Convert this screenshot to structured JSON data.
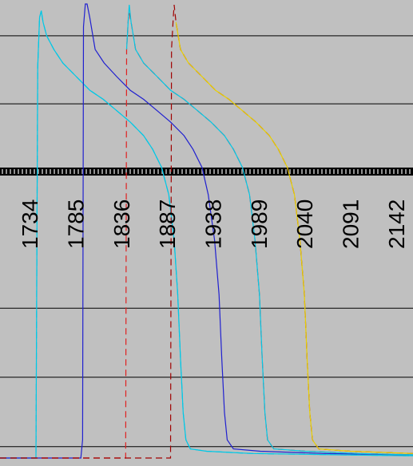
{
  "chart_data": {
    "type": "line",
    "title": "",
    "xlabel": "",
    "ylabel": "",
    "background": "#c0c0c0",
    "grid": true,
    "xlim": [
      1700,
      2160
    ],
    "ylim": [
      0,
      1
    ],
    "x_tick_labels": [
      "1734",
      "1785",
      "1836",
      "1887",
      "1938",
      "1989",
      "2040",
      "2091",
      "2142"
    ],
    "x_ticks": [
      1734,
      1785,
      1836,
      1887,
      1938,
      1989,
      2040,
      2091,
      2142
    ],
    "y_gridlines": [
      0.025,
      0.178,
      0.33,
      0.63,
      0.78,
      0.93
    ],
    "axis_band_color": "#000000",
    "series": [
      {
        "color": "#00c8e6",
        "dash": "8,5",
        "points": [
          [
            1700,
            0.0
          ],
          [
            1740,
            0.0
          ],
          [
            1742,
            0.86
          ],
          [
            1744,
            0.97
          ],
          [
            1746,
            0.985
          ],
          [
            1748,
            0.96
          ],
          [
            1752,
            0.93
          ],
          [
            1760,
            0.9
          ],
          [
            1770,
            0.87
          ],
          [
            1785,
            0.84
          ],
          [
            1800,
            0.81
          ],
          [
            1815,
            0.79
          ],
          [
            1830,
            0.765
          ],
          [
            1845,
            0.74
          ],
          [
            1860,
            0.71
          ],
          [
            1870,
            0.68
          ],
          [
            1880,
            0.64
          ],
          [
            1888,
            0.58
          ],
          [
            1894,
            0.48
          ],
          [
            1898,
            0.36
          ],
          [
            1901,
            0.22
          ],
          [
            1904,
            0.1
          ],
          [
            1907,
            0.04
          ],
          [
            1912,
            0.02
          ],
          [
            1930,
            0.015
          ],
          [
            1980,
            0.01
          ],
          [
            2080,
            0.007
          ],
          [
            2160,
            0.005
          ]
        ]
      },
      {
        "color": "#00c8e6",
        "dash": "",
        "points": [
          [
            1700,
            0.0
          ],
          [
            1740,
            0.0
          ],
          [
            1742,
            0.86
          ],
          [
            1744,
            0.97
          ],
          [
            1746,
            0.985
          ],
          [
            1748,
            0.96
          ],
          [
            1752,
            0.93
          ],
          [
            1760,
            0.9
          ],
          [
            1770,
            0.87
          ],
          [
            1785,
            0.84
          ],
          [
            1800,
            0.81
          ],
          [
            1815,
            0.79
          ],
          [
            1830,
            0.765
          ],
          [
            1845,
            0.74
          ],
          [
            1860,
            0.71
          ],
          [
            1870,
            0.68
          ],
          [
            1880,
            0.64
          ],
          [
            1888,
            0.58
          ],
          [
            1894,
            0.48
          ],
          [
            1898,
            0.36
          ],
          [
            1901,
            0.22
          ],
          [
            1904,
            0.1
          ],
          [
            1907,
            0.04
          ],
          [
            1912,
            0.02
          ],
          [
            1930,
            0.015
          ],
          [
            1980,
            0.01
          ],
          [
            2080,
            0.007
          ],
          [
            2160,
            0.005
          ]
        ]
      },
      {
        "color": "#2020d0",
        "dash": "",
        "points": [
          [
            1700,
            0.0
          ],
          [
            1790,
            0.0
          ],
          [
            1792,
            0.04
          ],
          [
            1793,
            0.95
          ],
          [
            1795,
            1.0
          ],
          [
            1797,
            1.0
          ],
          [
            1800,
            0.97
          ],
          [
            1806,
            0.9
          ],
          [
            1816,
            0.87
          ],
          [
            1830,
            0.84
          ],
          [
            1845,
            0.81
          ],
          [
            1860,
            0.79
          ],
          [
            1875,
            0.765
          ],
          [
            1890,
            0.74
          ],
          [
            1905,
            0.71
          ],
          [
            1915,
            0.68
          ],
          [
            1925,
            0.64
          ],
          [
            1932,
            0.58
          ],
          [
            1939,
            0.48
          ],
          [
            1944,
            0.36
          ],
          [
            1947,
            0.22
          ],
          [
            1950,
            0.1
          ],
          [
            1953,
            0.04
          ],
          [
            1960,
            0.02
          ],
          [
            1990,
            0.015
          ],
          [
            2060,
            0.01
          ],
          [
            2160,
            0.007
          ]
        ]
      },
      {
        "color": "#e02020",
        "dash": "8,5",
        "points": [
          [
            1700,
            0.0
          ],
          [
            1840,
            0.0
          ],
          [
            1841,
            0.9
          ],
          [
            1843,
            0.97
          ],
          [
            1844,
            0.98
          ],
          [
            1846,
            0.96
          ],
          [
            1851,
            0.9
          ],
          [
            1860,
            0.87
          ],
          [
            1875,
            0.84
          ],
          [
            1890,
            0.81
          ],
          [
            1905,
            0.79
          ],
          [
            1920,
            0.765
          ],
          [
            1935,
            0.74
          ],
          [
            1950,
            0.71
          ],
          [
            1960,
            0.68
          ],
          [
            1970,
            0.64
          ],
          [
            1978,
            0.58
          ],
          [
            1984,
            0.48
          ],
          [
            1989,
            0.36
          ],
          [
            1992,
            0.22
          ],
          [
            1995,
            0.1
          ],
          [
            1998,
            0.04
          ],
          [
            2005,
            0.02
          ],
          [
            2040,
            0.015
          ],
          [
            2100,
            0.01
          ],
          [
            2160,
            0.007
          ]
        ]
      },
      {
        "color": "#00c8e6",
        "dash": "",
        "points": [
          [
            1841,
            0.9
          ],
          [
            1843,
            0.97
          ],
          [
            1844,
            0.998
          ],
          [
            1846,
            0.96
          ],
          [
            1851,
            0.9
          ],
          [
            1860,
            0.87
          ],
          [
            1875,
            0.84
          ],
          [
            1890,
            0.81
          ],
          [
            1905,
            0.79
          ],
          [
            1920,
            0.765
          ],
          [
            1935,
            0.74
          ],
          [
            1950,
            0.71
          ],
          [
            1960,
            0.68
          ],
          [
            1970,
            0.64
          ],
          [
            1978,
            0.58
          ],
          [
            1984,
            0.48
          ],
          [
            1989,
            0.36
          ],
          [
            1992,
            0.22
          ],
          [
            1995,
            0.1
          ],
          [
            1998,
            0.04
          ],
          [
            2005,
            0.02
          ],
          [
            2040,
            0.015
          ],
          [
            2100,
            0.01
          ],
          [
            2160,
            0.007
          ]
        ]
      },
      {
        "color": "#a00000",
        "dash": "8,5",
        "points": [
          [
            1700,
            0.0
          ],
          [
            1890,
            0.0
          ],
          [
            1891,
            0.9
          ],
          [
            1893,
            0.97
          ],
          [
            1894,
            0.998
          ],
          [
            1896,
            0.96
          ],
          [
            1901,
            0.9
          ],
          [
            1910,
            0.87
          ],
          [
            1925,
            0.84
          ],
          [
            1940,
            0.81
          ],
          [
            1955,
            0.79
          ],
          [
            1970,
            0.765
          ],
          [
            1985,
            0.74
          ],
          [
            2000,
            0.71
          ],
          [
            2010,
            0.68
          ],
          [
            2020,
            0.64
          ],
          [
            2028,
            0.58
          ],
          [
            2034,
            0.48
          ],
          [
            2039,
            0.36
          ],
          [
            2042,
            0.22
          ],
          [
            2045,
            0.1
          ],
          [
            2048,
            0.04
          ],
          [
            2055,
            0.02
          ],
          [
            2090,
            0.015
          ],
          [
            2160,
            0.01
          ]
        ]
      },
      {
        "color": "#e8d000",
        "dash": "",
        "points": [
          [
            1896,
            0.96
          ],
          [
            1901,
            0.9
          ],
          [
            1910,
            0.87
          ],
          [
            1925,
            0.84
          ],
          [
            1940,
            0.81
          ],
          [
            1955,
            0.79
          ],
          [
            1970,
            0.765
          ],
          [
            1985,
            0.74
          ],
          [
            2000,
            0.71
          ],
          [
            2010,
            0.68
          ],
          [
            2020,
            0.64
          ],
          [
            2028,
            0.58
          ],
          [
            2034,
            0.48
          ],
          [
            2039,
            0.36
          ],
          [
            2042,
            0.22
          ],
          [
            2045,
            0.1
          ],
          [
            2048,
            0.04
          ],
          [
            2055,
            0.02
          ],
          [
            2090,
            0.015
          ],
          [
            2160,
            0.01
          ]
        ]
      }
    ]
  }
}
